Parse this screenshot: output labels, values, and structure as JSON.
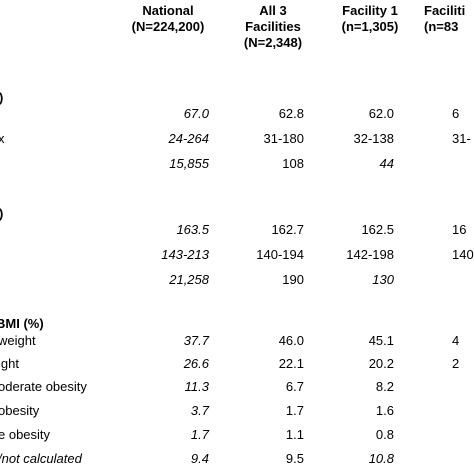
{
  "header": {
    "national": [
      "National",
      "(N=224,200)"
    ],
    "all3": [
      "All  3",
      "Facilities",
      "(N=2,348)"
    ],
    "facility1": [
      "Facility 1",
      "(n=1,305)"
    ],
    "facility2": [
      "Faciliti",
      "(n=83"
    ]
  },
  "sections": {
    "weight": {
      "label": ")"
    },
    "height": {
      "label": ")"
    },
    "bmi": {
      "label": "BMI (%)"
    }
  },
  "rows": [
    {
      "label": "",
      "national": "67.0",
      "all3": "62.8",
      "fac1": "62.0",
      "fac2": "6"
    },
    {
      "label": "x",
      "national": "24-264",
      "all3": "31-180",
      "fac1": "32-138",
      "fac2": "31-"
    },
    {
      "label": "",
      "national": "15,855",
      "all3": "108",
      "fac1": "44",
      "fac2": ""
    },
    {
      "label": "",
      "national": "163.5",
      "all3": "162.7",
      "fac1": "162.5",
      "fac2": "16"
    },
    {
      "label": "",
      "national": "143-213",
      "all3": "140-194",
      "fac1": "142-198",
      "fac2": "140"
    },
    {
      "label": "",
      "national": "21,258",
      "all3": "190",
      "fac1": "130",
      "fac2": ""
    },
    {
      "label": "weight",
      "national": "37.7",
      "all3": "46.0",
      "fac1": "45.1",
      "fac2": "4"
    },
    {
      "label": "ight",
      "national": "26.6",
      "all3": "22.1",
      "fac1": "20.2",
      "fac2": "2"
    },
    {
      "label": "oderate obesity",
      "national": "11.3",
      "all3": "6.7",
      "fac1": "8.2",
      "fac2": ""
    },
    {
      "label": "obesity",
      "national": "3.7",
      "all3": "1.7",
      "fac1": "1.6",
      "fac2": ""
    },
    {
      "label": "e obesity",
      "national": "1.7",
      "all3": "1.1",
      "fac1": "0.8",
      "fac2": ""
    },
    {
      "label": "/not calculated",
      "national": "9.4",
      "all3": "9.5",
      "fac1": "10.8",
      "fac2": ""
    }
  ]
}
